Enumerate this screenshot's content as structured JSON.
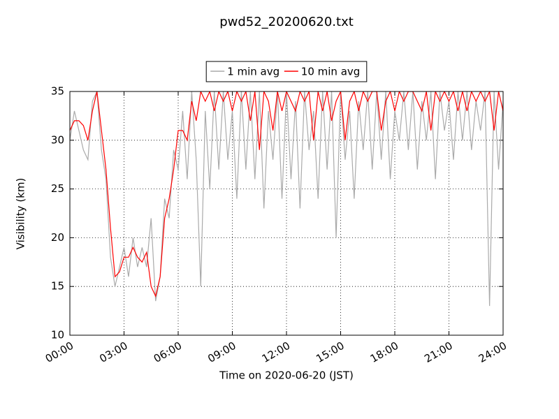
{
  "chart_data": {
    "type": "line",
    "title": "pwd52_20200620.txt",
    "xlabel": "Time on 2020-06-20 (JST)",
    "ylabel": "Visibility (km)",
    "x": [
      0,
      0.25,
      0.5,
      0.75,
      1,
      1.25,
      1.5,
      1.75,
      2,
      2.25,
      2.5,
      2.75,
      3,
      3.25,
      3.5,
      3.75,
      4,
      4.25,
      4.5,
      4.75,
      5,
      5.25,
      5.5,
      5.75,
      6,
      6.25,
      6.5,
      6.75,
      7,
      7.25,
      7.5,
      7.75,
      8,
      8.25,
      8.5,
      8.75,
      9,
      9.25,
      9.5,
      9.75,
      10,
      10.25,
      10.5,
      10.75,
      11,
      11.25,
      11.5,
      11.75,
      12,
      12.25,
      12.5,
      12.75,
      13,
      13.25,
      13.5,
      13.75,
      14,
      14.25,
      14.5,
      14.75,
      15,
      15.25,
      15.5,
      15.75,
      16,
      16.25,
      16.5,
      16.75,
      17,
      17.25,
      17.5,
      17.75,
      18,
      18.25,
      18.5,
      18.75,
      19,
      19.25,
      19.5,
      19.75,
      20,
      20.25,
      20.5,
      20.75,
      21,
      21.25,
      21.5,
      21.75,
      22,
      22.25,
      22.5,
      22.75,
      23,
      23.25,
      23.5,
      23.75,
      24
    ],
    "series": [
      {
        "name": "1 min avg",
        "color": "#aaaaaa",
        "values": [
          30,
          33,
          31,
          29,
          28,
          34,
          35,
          29,
          26,
          18,
          15,
          17,
          19,
          16,
          20,
          17,
          19,
          17,
          22,
          13.5,
          16,
          24,
          22,
          29,
          27,
          33,
          26,
          35,
          28,
          15,
          33,
          25,
          35,
          27,
          35,
          28,
          33,
          24,
          35,
          27,
          35,
          26,
          35,
          23,
          33,
          28,
          35,
          24,
          35,
          26,
          34,
          23,
          35,
          29,
          33,
          24,
          35,
          27,
          35,
          20,
          35,
          28,
          33,
          24,
          34,
          29,
          35,
          27,
          35,
          28,
          35,
          26,
          33,
          30,
          35,
          29,
          35,
          27,
          34,
          30,
          35,
          26,
          35,
          31,
          34,
          28,
          35,
          30,
          35,
          29,
          34,
          31,
          35,
          13,
          35,
          27,
          34
        ]
      },
      {
        "name": "10 min avg",
        "color": "#ff0000",
        "values": [
          31,
          32,
          32,
          31.5,
          30,
          33,
          35,
          31,
          27,
          21,
          16,
          16.5,
          18,
          18,
          19,
          18,
          17.5,
          18.5,
          15,
          14,
          16,
          22,
          24,
          27,
          31,
          31,
          30,
          34,
          32,
          35,
          34,
          35,
          33,
          35,
          34,
          35,
          33,
          35,
          34,
          35,
          32,
          35,
          29,
          35,
          34,
          31,
          35,
          33,
          35,
          34,
          33,
          35,
          34,
          35,
          30,
          35,
          33,
          35,
          32,
          34,
          35,
          30,
          34,
          35,
          33,
          35,
          34,
          35,
          35,
          31,
          34,
          35,
          33,
          35,
          34,
          35,
          35,
          34,
          33,
          35,
          31,
          35,
          34,
          35,
          34,
          35,
          33,
          35,
          33,
          35,
          34,
          35,
          34,
          35,
          31,
          35,
          33
        ]
      }
    ],
    "xlim": [
      0,
      24
    ],
    "ylim": [
      10,
      35
    ],
    "xticks": [
      {
        "value": 0,
        "label": "00:00"
      },
      {
        "value": 3,
        "label": "03:00"
      },
      {
        "value": 6,
        "label": "06:00"
      },
      {
        "value": 9,
        "label": "09:00"
      },
      {
        "value": 12,
        "label": "12:00"
      },
      {
        "value": 15,
        "label": "15:00"
      },
      {
        "value": 18,
        "label": "18:00"
      },
      {
        "value": 21,
        "label": "21:00"
      },
      {
        "value": 24,
        "label": "24:00"
      }
    ],
    "yticks": [
      10,
      15,
      20,
      25,
      30,
      35
    ],
    "grid": true,
    "legend": "upper center"
  }
}
